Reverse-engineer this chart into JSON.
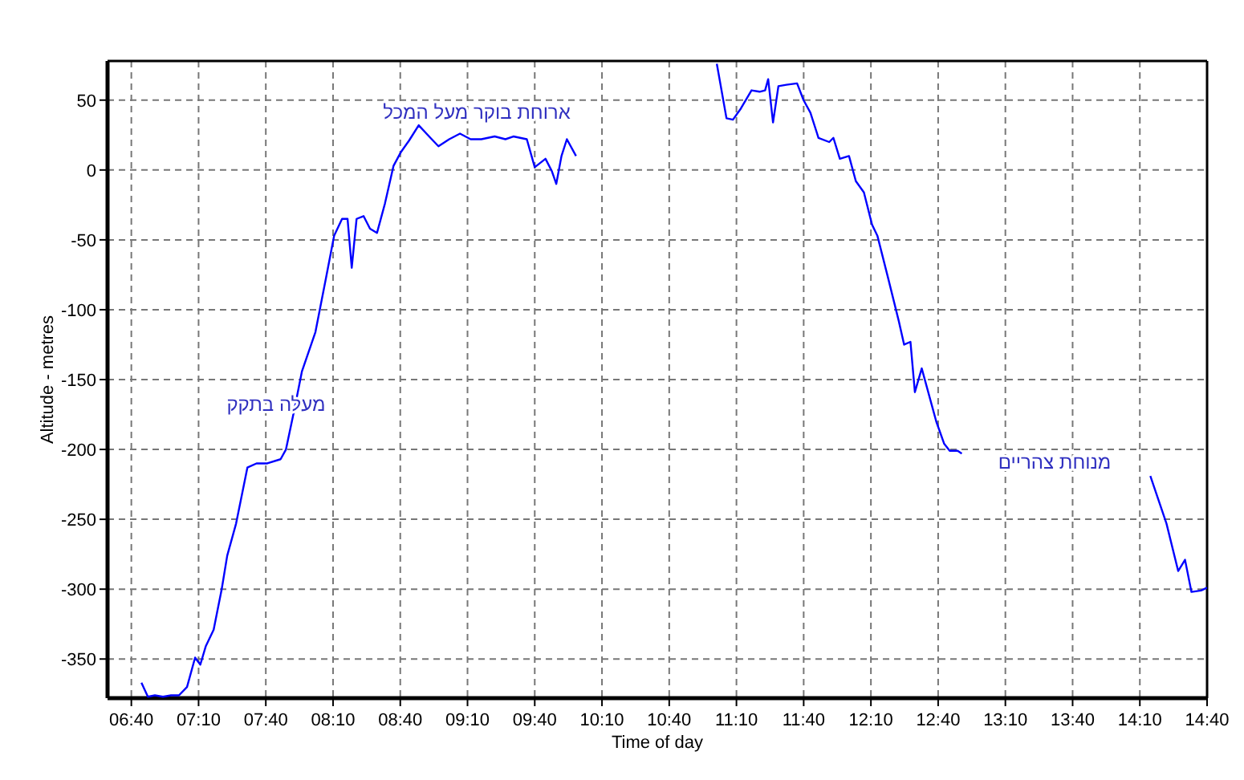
{
  "chart_data": {
    "type": "line",
    "xlabel": "Time of day",
    "ylabel": "Altitude - metres",
    "xlim": [
      6.49,
      14.667
    ],
    "ylim": [
      -378,
      78
    ],
    "xticks": [
      {
        "value": 6.667,
        "label": "06:40"
      },
      {
        "value": 7.167,
        "label": "07:10"
      },
      {
        "value": 7.667,
        "label": "07:40"
      },
      {
        "value": 8.167,
        "label": "08:10"
      },
      {
        "value": 8.667,
        "label": "08:40"
      },
      {
        "value": 9.167,
        "label": "09:10"
      },
      {
        "value": 9.667,
        "label": "09:40"
      },
      {
        "value": 10.167,
        "label": "10:10"
      },
      {
        "value": 10.667,
        "label": "10:40"
      },
      {
        "value": 11.167,
        "label": "11:10"
      },
      {
        "value": 11.667,
        "label": "11:40"
      },
      {
        "value": 12.167,
        "label": "12:10"
      },
      {
        "value": 12.667,
        "label": "12:40"
      },
      {
        "value": 13.167,
        "label": "13:10"
      },
      {
        "value": 13.667,
        "label": "13:40"
      },
      {
        "value": 14.167,
        "label": "14:10"
      },
      {
        "value": 14.667,
        "label": "14:40"
      }
    ],
    "yticks": [
      50,
      0,
      -50,
      -100,
      -150,
      -200,
      -250,
      -300,
      -350
    ],
    "grid": true,
    "series": [
      {
        "color": "#0000ff",
        "x": [
          6.742,
          6.79,
          6.842,
          6.902,
          6.962,
          7.021,
          7.081,
          7.141,
          7.18,
          7.22,
          7.279,
          7.339,
          7.38,
          7.446,
          7.53,
          7.598,
          7.678,
          7.777,
          7.817,
          7.876,
          7.936,
          8.036,
          8.115,
          8.175,
          8.234,
          8.275,
          8.306,
          8.342,
          8.394,
          8.442,
          8.494,
          8.553,
          8.617,
          8.673,
          8.732,
          8.804,
          8.891,
          8.951,
          9.031,
          9.111,
          9.19,
          9.27,
          9.369,
          9.449,
          9.508,
          9.608,
          9.667,
          9.747,
          9.795,
          9.827,
          9.866,
          9.906,
          9.974
        ],
        "values": [
          -367,
          -377,
          -376,
          -377,
          -376,
          -376,
          -370,
          -349,
          -354,
          -341,
          -329,
          -300,
          -276,
          -253,
          -213,
          -210,
          -210,
          -207,
          -200,
          -173,
          -144,
          -116,
          -77,
          -47,
          -35,
          -35,
          -70,
          -35,
          -33,
          -42,
          -45,
          -24,
          3,
          13,
          21,
          32,
          23,
          17,
          22,
          26,
          22,
          22,
          24,
          22,
          24,
          22,
          2,
          8,
          -1,
          -10,
          10,
          22,
          10
        ]
      },
      {
        "color": "#0000ff",
        "x": [
          11.021,
          11.093,
          11.141,
          11.2,
          11.279,
          11.339,
          11.38,
          11.403,
          11.439,
          11.479,
          11.539,
          11.618,
          11.666,
          11.717,
          11.777,
          11.857,
          11.888,
          11.936,
          12.004,
          12.055,
          12.115,
          12.175,
          12.215,
          12.294,
          12.374,
          12.414,
          12.461,
          12.494,
          12.545,
          12.653,
          12.712,
          12.753,
          12.812,
          12.843
        ],
        "values": [
          76,
          37,
          36,
          44,
          57,
          56,
          57,
          65,
          34,
          60,
          61,
          62,
          50,
          41,
          23,
          20,
          23,
          8,
          10,
          -8,
          -16,
          -39,
          -47,
          -77,
          -108,
          -125,
          -123,
          -159,
          -142,
          -180,
          -196,
          -201,
          -201,
          -203
        ]
      },
      {
        "color": "#0000ff",
        "x": [
          14.245,
          14.365,
          14.452,
          14.503,
          14.551,
          14.622,
          14.667
        ],
        "values": [
          -219,
          -253,
          -287,
          -279,
          -302,
          -301,
          -299
        ]
      }
    ],
    "annotations": [
      "ארוחת בוקר מעל המכל",
      "מעלה בתקק",
      "מנוחת צהריים"
    ]
  }
}
